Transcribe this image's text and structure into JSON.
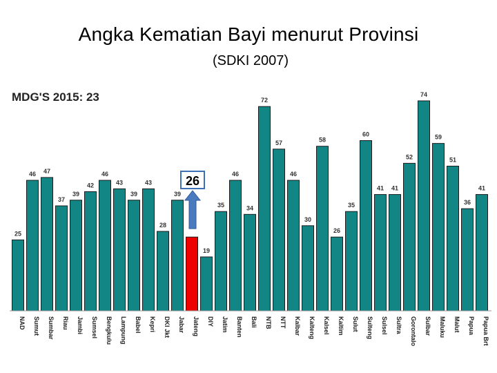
{
  "title": "Angka Kematian Bayi menurut Provinsi",
  "subtitle": "(SDKI 2007)",
  "target_label": "MDG'S 2015: 23",
  "highlight_value": "26",
  "colors": {
    "bar": "#128585",
    "highlight": "#ee0000",
    "arrow": "#4a7bbf",
    "callout_border": "#3b6fb6"
  },
  "chart_data": {
    "type": "bar",
    "title": "Angka Kematian Bayi menurut Provinsi",
    "subtitle": "(SDKI 2007)",
    "categories": [
      "NAD",
      "Sumut",
      "Sumbar",
      "Riau",
      "Jambi",
      "Sumsel",
      "Bengkulu",
      "Lampung",
      "Babel",
      "Kepri",
      "DKI Jkt",
      "Jabar",
      "Jateng",
      "DIY",
      "Jatim",
      "Banten",
      "Bali",
      "NTB",
      "NTT",
      "Kalbar",
      "Kalteng",
      "Kalsel",
      "Kaltim",
      "Sulut",
      "Sulteng",
      "Sulsel",
      "Sultra",
      "Gorontalo",
      "Sulbar",
      "Maluku",
      "Malut",
      "Papua",
      "Papua Brt"
    ],
    "values": [
      25,
      46,
      47,
      37,
      39,
      42,
      46,
      43,
      39,
      43,
      28,
      39,
      null,
      19,
      35,
      46,
      34,
      72,
      57,
      46,
      30,
      58,
      26,
      35,
      60,
      41,
      41,
      52,
      74,
      59,
      51,
      36,
      41
    ],
    "highlight_index": 12,
    "highlight_value": 26,
    "ylim": [
      0,
      78
    ],
    "grid": false,
    "annotation": "MDG'S 2015: 23"
  }
}
